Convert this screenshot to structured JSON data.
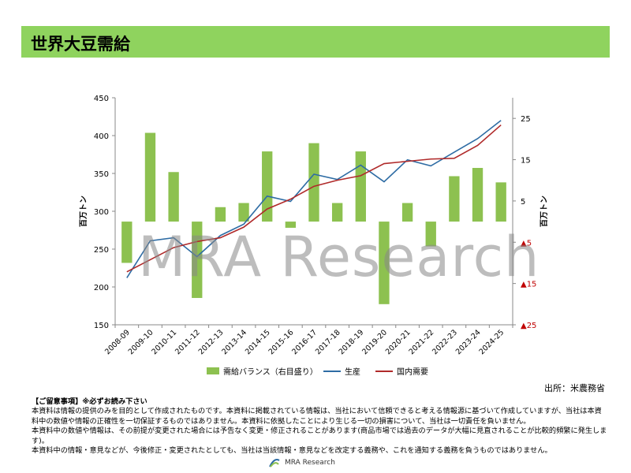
{
  "title": "世界大豆需給",
  "source": "出所：米農務省",
  "watermark": "MRA Research",
  "notes": {
    "heading": "【ご留意事項】※必ずお読み下さい",
    "lines": [
      "本資料は情報の提供のみを目的として作成されたものです。本資料に掲載されている情報は、当社において信頼できると考える情報源に基づいて作成していますが、当社は本資料中の数値や情報の正確性を一切保証するものではありません。本資料に依拠したことにより生じる一切の損害について、当社は一切責任を負いません。",
      "本資料中の数値や情報は、その前提が変更された場合には予告なく変更・修正されることがあります(商品市場では過去のデータが大幅に見直されることが比較的頻繁に発生します)。",
      "本資料中の情報・意見などが、今後修正・変更されたとしても、当社は当該情報・意見などを改定する義務や、これを通知する義務を負うものではありません。"
    ]
  },
  "footer": {
    "logo_text": "MRA Research"
  },
  "colors": {
    "title_bg": "#8fd35e",
    "balance_bar": "#8dc150",
    "production_line": "#2e6ca4",
    "consumption_line": "#b02a2a",
    "negative_tick": "#c00000"
  },
  "chart_data": {
    "type": "bar+line",
    "categories": [
      "2008-09",
      "2009-10",
      "2010-11",
      "2011-12",
      "2012-13",
      "2013-14",
      "2014-15",
      "2015-16",
      "2016-17",
      "2017-18",
      "2018-19",
      "2019-20",
      "2020-21",
      "2021-22",
      "2022-23",
      "2023-24",
      "2024-25"
    ],
    "left_axis": {
      "label": "百万トン",
      "min": 150,
      "max": 450,
      "ticks": [
        "150",
        "200",
        "250",
        "300",
        "350",
        "400",
        "450"
      ]
    },
    "right_axis": {
      "label": "百万トン",
      "min": -25,
      "max": 30,
      "tick_values": [
        -25,
        -15,
        -5,
        5,
        15,
        25
      ],
      "tick_labels": [
        "▲25",
        "▲15",
        "▲5",
        "5",
        "15",
        "25"
      ]
    },
    "series": [
      {
        "name": "需給バランス（右目盛り）",
        "type": "bar",
        "axis": "right",
        "values": [
          -10,
          21.5,
          12,
          -18.5,
          3.5,
          4.5,
          17,
          -1.5,
          19,
          4.5,
          17,
          -20,
          4.5,
          -6,
          11,
          13,
          9.5
        ]
      },
      {
        "name": "生産",
        "type": "line",
        "axis": "left",
        "values": [
          212,
          261,
          265,
          240,
          268,
          283,
          320,
          313,
          349,
          342,
          361,
          339,
          368,
          360,
          378,
          396,
          420
        ]
      },
      {
        "name": "国内需要",
        "type": "line",
        "axis": "left",
        "values": [
          220,
          236,
          252,
          260,
          265,
          279,
          303,
          316,
          333,
          341,
          347,
          363,
          366,
          369,
          370,
          387,
          414
        ]
      }
    ]
  }
}
